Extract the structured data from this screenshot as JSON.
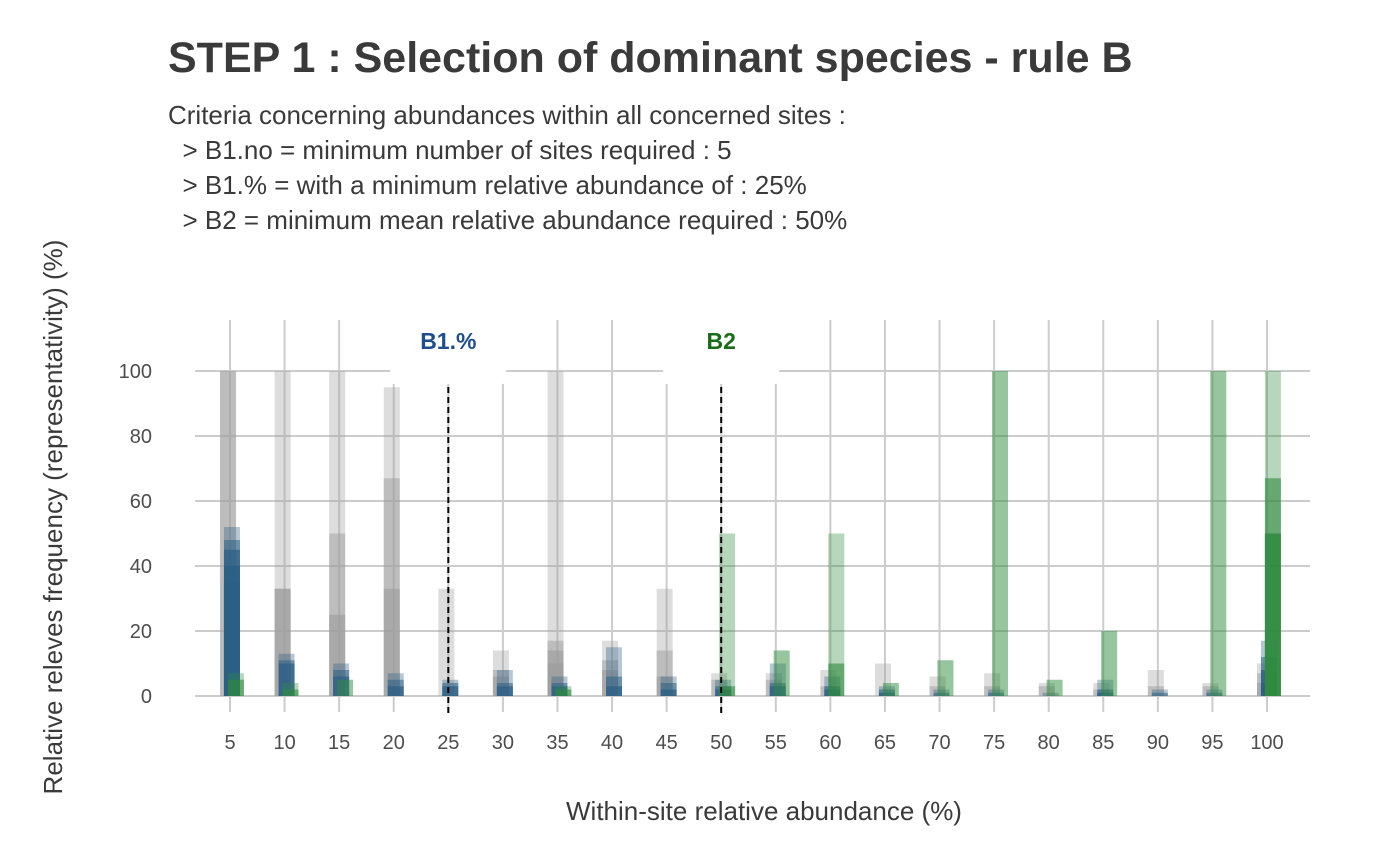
{
  "title": "STEP 1 : Selection of dominant species - rule B",
  "subtitle": [
    "Criteria concerning abundances within all concerned sites :",
    "  > B1.no = minimum number of sites required : 5",
    "  > B1.% = with a minimum relative abundance of : 25%",
    "  > B2 = minimum mean relative abundance required : 50%"
  ],
  "chart_data": {
    "type": "bar",
    "xlabel": "Within-site relative abundance (%)",
    "ylabel": "Relative releves frequency (representativity) (%)",
    "xticks": [
      5,
      10,
      15,
      20,
      25,
      30,
      35,
      40,
      45,
      50,
      55,
      60,
      65,
      70,
      75,
      80,
      85,
      90,
      95,
      100
    ],
    "xticklabels": [
      "5",
      "10",
      "15",
      "20",
      "25",
      "30",
      "35",
      "40",
      "45",
      "50",
      "55",
      "60",
      "65",
      "70",
      "75",
      "80",
      "85",
      "90",
      "95",
      "100"
    ],
    "yticks": [
      0,
      20,
      40,
      60,
      80,
      100
    ],
    "yticklabels": [
      "0",
      "20",
      "40",
      "60",
      "80",
      "100"
    ],
    "ylim": [
      0,
      100
    ],
    "grid": true,
    "reference_lines": [
      {
        "label": "B1.%",
        "x": 25,
        "color": "#1f4e8c"
      },
      {
        "label": "B2",
        "x": 50,
        "color": "#1a6b1a"
      }
    ],
    "palette": {
      "gray": "#9e9e9e",
      "blue": "#2c5f85",
      "green": "#2e8b3e"
    },
    "bins": [
      {
        "x": 5,
        "gray": [
          100,
          100
        ],
        "blue": [
          52,
          48,
          45,
          40,
          35
        ],
        "green": [
          7,
          5
        ]
      },
      {
        "x": 10,
        "gray": [
          100,
          33,
          33
        ],
        "blue": [
          13,
          11,
          10
        ],
        "green": [
          4,
          2
        ]
      },
      {
        "x": 15,
        "gray": [
          100,
          50,
          25
        ],
        "blue": [
          10,
          8,
          6
        ],
        "green": [
          5
        ]
      },
      {
        "x": 20,
        "gray": [
          95,
          67,
          33
        ],
        "blue": [
          7,
          5,
          3
        ],
        "green": []
      },
      {
        "x": 25,
        "gray": [
          33
        ],
        "blue": [
          5,
          4,
          3
        ],
        "green": []
      },
      {
        "x": 30,
        "gray": [
          14,
          8,
          6
        ],
        "blue": [
          8,
          4,
          3
        ],
        "green": []
      },
      {
        "x": 35,
        "gray": [
          100,
          17,
          14,
          10
        ],
        "blue": [
          6,
          4,
          3
        ],
        "green": [
          3,
          2
        ]
      },
      {
        "x": 40,
        "gray": [
          17,
          11,
          8
        ],
        "blue": [
          15,
          6,
          3
        ],
        "green": []
      },
      {
        "x": 45,
        "gray": [
          33,
          14,
          6
        ],
        "blue": [
          6,
          4,
          2
        ],
        "green": []
      },
      {
        "x": 50,
        "gray": [
          7,
          5
        ],
        "blue": [
          5,
          3,
          2
        ],
        "green": [
          50,
          3
        ]
      },
      {
        "x": 55,
        "gray": [
          7,
          5
        ],
        "blue": [
          10,
          4,
          3
        ],
        "green": [
          14
        ]
      },
      {
        "x": 60,
        "gray": [
          8,
          3
        ],
        "blue": [
          6,
          3,
          2
        ],
        "green": [
          50,
          10
        ]
      },
      {
        "x": 65,
        "gray": [
          10
        ],
        "blue": [
          3,
          2,
          1
        ],
        "green": [
          4
        ]
      },
      {
        "x": 70,
        "gray": [
          6,
          3
        ],
        "blue": [
          2,
          1
        ],
        "green": [
          11
        ]
      },
      {
        "x": 75,
        "gray": [
          7,
          3
        ],
        "blue": [
          2,
          1
        ],
        "green": [
          100
        ]
      },
      {
        "x": 80,
        "gray": [
          4,
          3
        ],
        "blue": [
          1
        ],
        "green": [
          5
        ]
      },
      {
        "x": 85,
        "gray": [
          4,
          2
        ],
        "blue": [
          5,
          2,
          1
        ],
        "green": [
          20
        ]
      },
      {
        "x": 90,
        "gray": [
          8,
          3
        ],
        "blue": [
          2,
          1
        ],
        "green": []
      },
      {
        "x": 95,
        "gray": [
          4,
          3
        ],
        "blue": [
          2,
          1
        ],
        "green": [
          100
        ]
      },
      {
        "x": 100,
        "gray": [
          10,
          7,
          4
        ],
        "blue": [
          17,
          12,
          8,
          4
        ],
        "green": [
          100,
          67,
          50
        ]
      }
    ]
  }
}
